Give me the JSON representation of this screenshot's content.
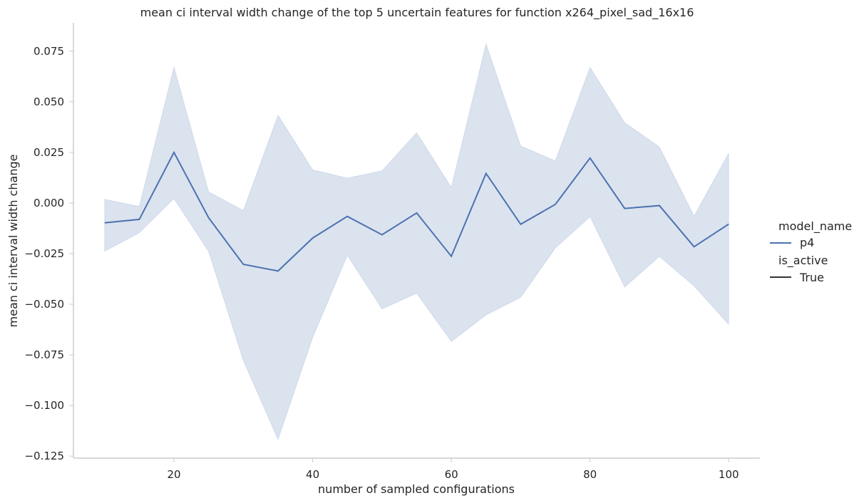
{
  "chart_data": {
    "type": "line",
    "title": "mean ci interval width change of the top 5 uncertain features for function x264_pixel_sad_16x16",
    "xlabel": "number of sampled configurations",
    "ylabel": "mean ci interval width change",
    "xlim": [
      5.5,
      104.5
    ],
    "ylim": [
      -0.126,
      0.089
    ],
    "xticks": [
      20,
      40,
      60,
      80,
      100
    ],
    "xtick_labels": [
      "20",
      "40",
      "60",
      "80",
      "100"
    ],
    "yticks": [
      0.075,
      0.05,
      0.025,
      0.0,
      -0.025,
      -0.05,
      -0.075,
      -0.1,
      -0.125
    ],
    "ytick_labels": [
      "0.075",
      "0.050",
      "0.025",
      "0.000",
      "−0.025",
      "−0.050",
      "−0.075",
      "−0.100",
      "−0.125"
    ],
    "grid": false,
    "x": [
      10,
      15,
      20,
      25,
      30,
      35,
      40,
      45,
      50,
      55,
      60,
      65,
      70,
      75,
      80,
      85,
      90,
      95,
      100
    ],
    "series": [
      {
        "name": "p4",
        "color": "#4c72b0",
        "band_color": "#4c72b0",
        "values": [
          -0.0098,
          -0.0081,
          0.025,
          -0.0073,
          -0.0303,
          -0.0336,
          -0.0173,
          -0.0066,
          -0.0157,
          -0.0049,
          -0.0263,
          0.0146,
          -0.0105,
          -0.0007,
          0.0222,
          -0.0027,
          -0.0013,
          -0.0216,
          -0.0104
        ],
        "ci_upper": [
          0.0018,
          -0.0017,
          0.0672,
          0.0055,
          -0.0037,
          0.0434,
          0.0164,
          0.0123,
          0.0159,
          0.0347,
          0.0077,
          0.0786,
          0.0282,
          0.0208,
          0.067,
          0.0397,
          0.0277,
          -0.0065,
          0.0246
        ],
        "ci_lower": [
          -0.0238,
          -0.0147,
          0.0022,
          -0.024,
          -0.0778,
          -0.1168,
          -0.0665,
          -0.0259,
          -0.0523,
          -0.0446,
          -0.0684,
          -0.0553,
          -0.0466,
          -0.0223,
          -0.0068,
          -0.0415,
          -0.0264,
          -0.041,
          -0.06
        ]
      }
    ],
    "legend": {
      "placement": "right",
      "hue_title": "model_name",
      "hue_entries": [
        {
          "label": "p4",
          "color": "#4c72b0"
        }
      ],
      "style_title": "is_active",
      "style_entries": [
        {
          "label": "True",
          "color": "#333333"
        }
      ]
    }
  }
}
